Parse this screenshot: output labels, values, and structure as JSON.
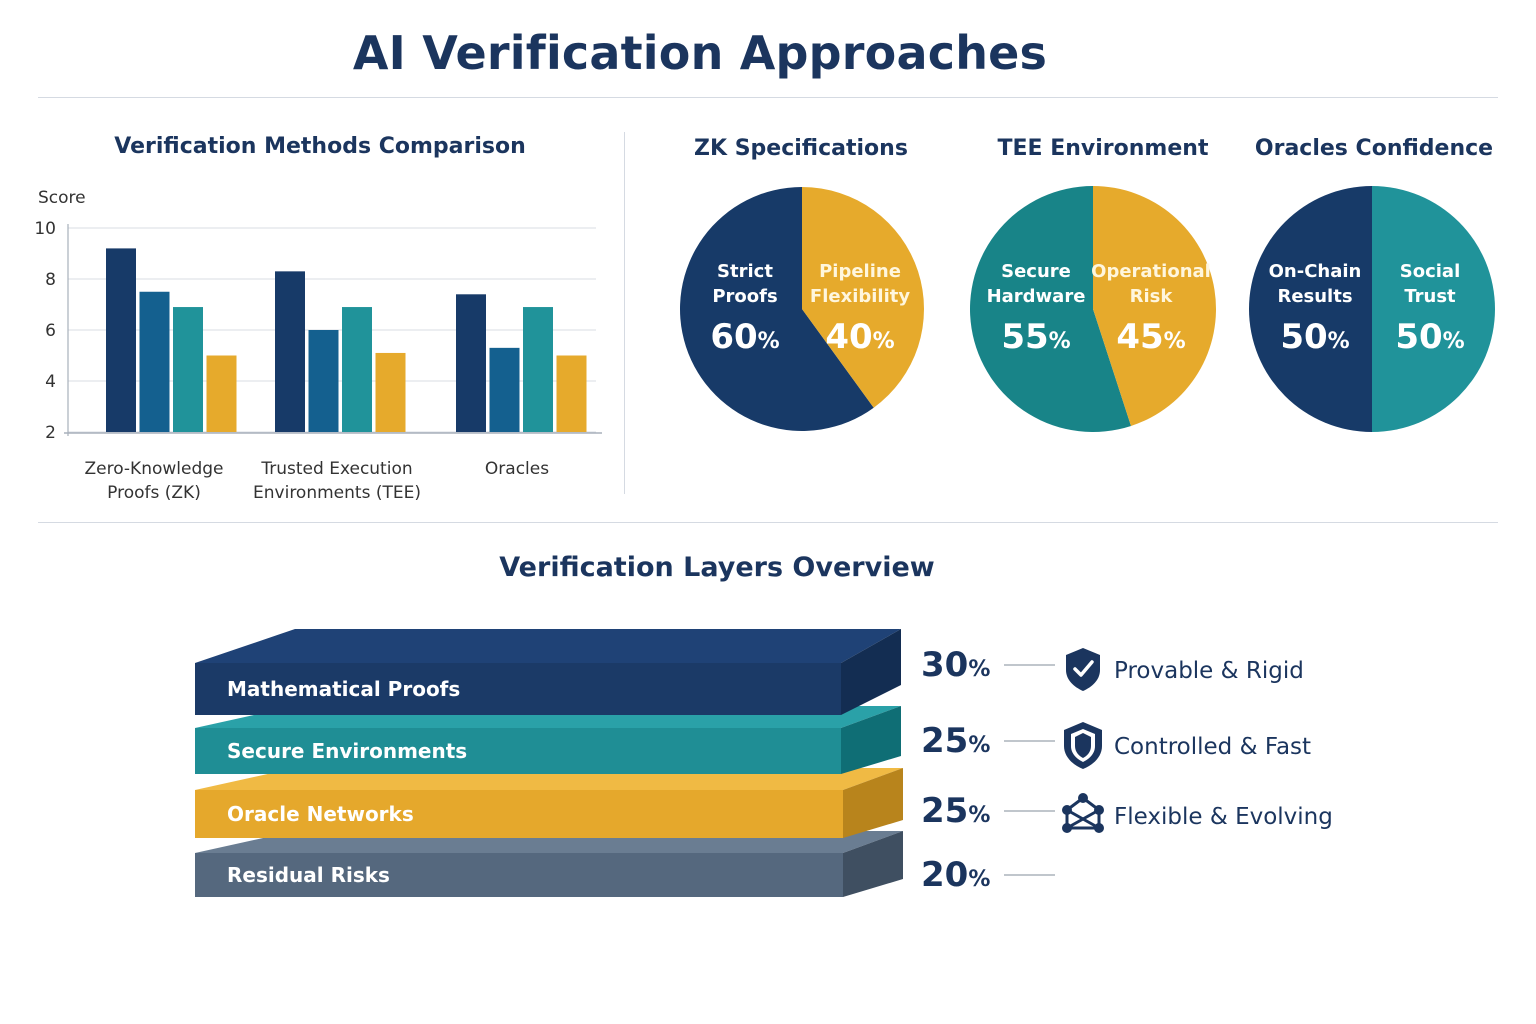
{
  "title": "AI Verification Approaches",
  "colors": {
    "navy": "#173a68",
    "blue": "#14608f",
    "teal": "#20939a",
    "gold": "#e6aa2c",
    "slate": "#55687e",
    "heading": "#1b355e"
  },
  "chart_data": [
    {
      "type": "bar",
      "title": "Verification Methods Comparison",
      "ylabel": "Score",
      "xlabel": "",
      "ylim": [
        2,
        10
      ],
      "yticks": [
        2,
        4,
        6,
        8,
        10
      ],
      "grid": true,
      "categories": [
        "Zero-Knowledge Proofs (ZK)",
        "Trusted Execution Environments (TEE)",
        "Oracles"
      ],
      "category_lines": [
        [
          "Zero-Knowledge",
          "Proofs (ZK)"
        ],
        [
          "Trusted Execution",
          "Environments (TEE)"
        ],
        [
          "Oracles"
        ]
      ],
      "series": [
        {
          "values": [
            9.2,
            8.3,
            7.4
          ]
        },
        {
          "values": [
            7.5,
            6.0,
            5.3
          ]
        },
        {
          "values": [
            6.9,
            6.9,
            6.9
          ]
        },
        {
          "values": [
            5.0,
            5.1,
            5.0
          ]
        }
      ]
    },
    {
      "type": "pie",
      "title": "ZK Specifications",
      "slices": [
        {
          "label_lines": [
            "Strict",
            "Proofs"
          ],
          "value": 60,
          "color": "#173a68"
        },
        {
          "label_lines": [
            "Pipeline",
            "Flexibility"
          ],
          "value": 40,
          "color": "#e6aa2c"
        }
      ]
    },
    {
      "type": "pie",
      "title": "TEE Environment",
      "slices": [
        {
          "label_lines": [
            "Secure",
            "Hardware"
          ],
          "value": 55,
          "color": "#188488"
        },
        {
          "label_lines": [
            "Operational",
            "Risk"
          ],
          "value": 45,
          "color": "#e6aa2c"
        }
      ]
    },
    {
      "type": "pie",
      "title": "Oracles Confidence",
      "slices": [
        {
          "label_lines": [
            "On-Chain",
            "Results"
          ],
          "value": 50,
          "color": "#173a68"
        },
        {
          "label_lines": [
            "Social",
            "Trust"
          ],
          "value": 50,
          "color": "#20939a"
        }
      ]
    },
    {
      "type": "bar",
      "title": "Verification Layers Overview",
      "layers": [
        {
          "label": "Mathematical Proofs",
          "value": 30,
          "note": "Provable & Rigid",
          "icon": "shield-check-icon",
          "color": "#1b3a67"
        },
        {
          "label": "Secure Environments",
          "value": 25,
          "note": "Controlled & Fast",
          "icon": "shield-icon",
          "color": "#1f8e95"
        },
        {
          "label": "Oracle Networks",
          "value": 25,
          "note": "Flexible & Evolving",
          "icon": "network-icon",
          "color": "#e5a82c"
        },
        {
          "label": "Residual Risks",
          "value": 20,
          "note": "",
          "icon": "",
          "color": "#55687e"
        }
      ]
    }
  ]
}
